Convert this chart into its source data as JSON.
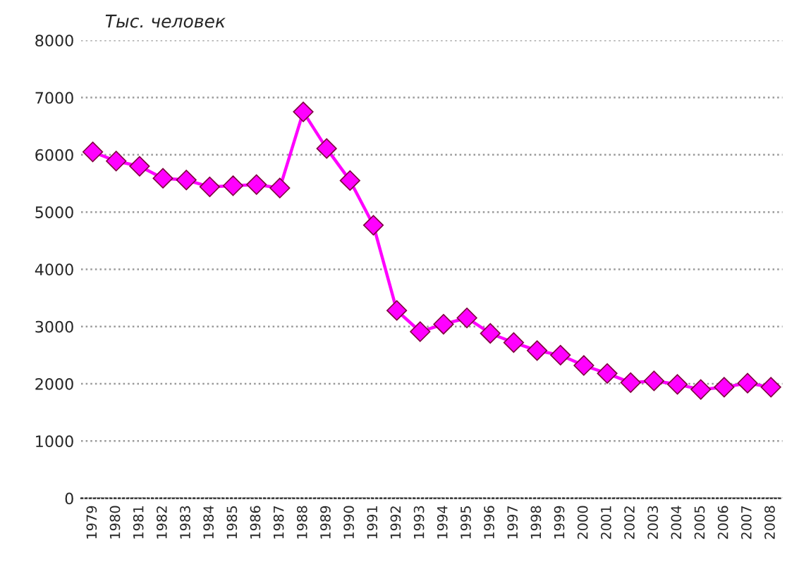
{
  "chart_data": {
    "type": "line",
    "ylabel": "Тыс. человек",
    "categories": [
      "1979",
      "1980",
      "1981",
      "1982",
      "1983",
      "1984",
      "1985",
      "1986",
      "1987",
      "1988",
      "1989",
      "1990",
      "1991",
      "1992",
      "1993",
      "1994",
      "1995",
      "1996",
      "1997",
      "1998",
      "1999",
      "2000",
      "2001",
      "2002",
      "2003",
      "2004",
      "2005",
      "2006",
      "2007",
      "2008"
    ],
    "series": [
      {
        "color": "#ff00ff",
        "values": [
          6050,
          5890,
          5800,
          5590,
          5560,
          5440,
          5460,
          5480,
          5420,
          6750,
          6110,
          5550,
          4770,
          3280,
          2910,
          3040,
          3150,
          2880,
          2720,
          2580,
          2500,
          2320,
          2180,
          2020,
          2050,
          1990,
          1900,
          1940,
          2010,
          1940
        ]
      }
    ],
    "ylim": [
      0,
      8000
    ],
    "yticks": [
      0,
      1000,
      2000,
      3000,
      4000,
      5000,
      6000,
      7000,
      8000
    ],
    "grid": "y",
    "marker": "diamond",
    "line_style": "solid",
    "legend": false
  }
}
